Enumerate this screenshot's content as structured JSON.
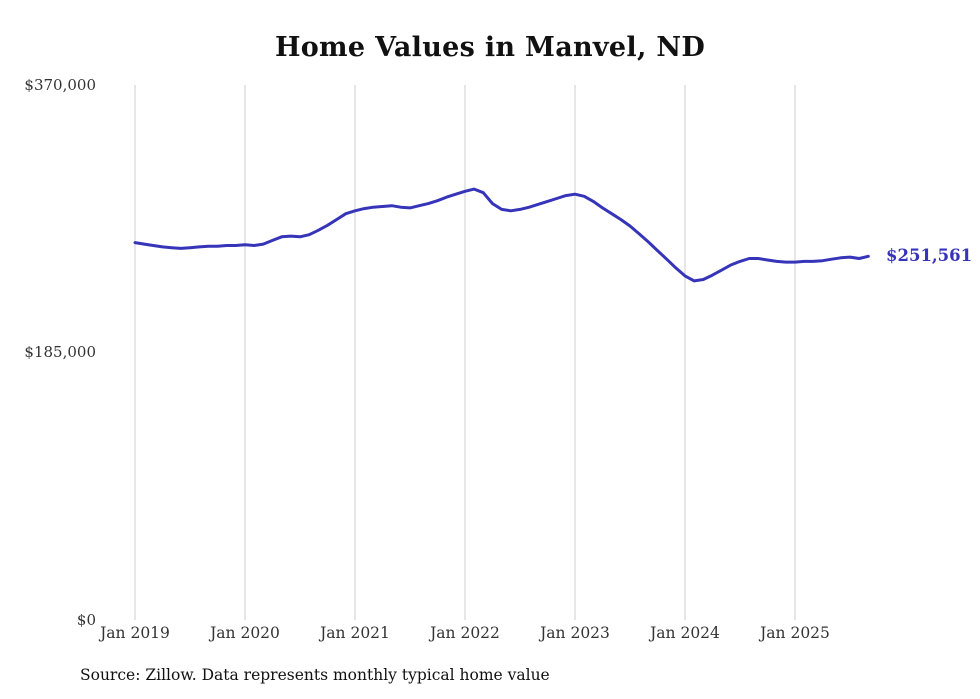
{
  "chart_data": {
    "type": "line",
    "title": "Home Values in Manvel, ND",
    "source": "Source: Zillow. Data represents monthly typical home value",
    "xlabel": "",
    "ylabel": "",
    "ylim": [
      0,
      370000
    ],
    "grid": "vertical-only",
    "legend": "none",
    "line_color": "#3634b8",
    "grid_color": "#cccccc",
    "end_label": "$251,561",
    "end_value": 251561,
    "y_ticks": [
      "$370,000",
      "$185,000",
      "$0"
    ],
    "y_tick_values": [
      370000,
      185000,
      0
    ],
    "x_ticks": [
      "Jan 2019",
      "Jan 2020",
      "Jan 2021",
      "Jan 2022",
      "Jan 2023",
      "Jan 2024",
      "Jan 2025"
    ],
    "series": [
      {
        "name": "Typical home value",
        "start_month": "Jan 2019",
        "end_month": "Sep 2025",
        "frequency": "monthly",
        "values": [
          261000,
          260000,
          259000,
          258000,
          257500,
          257000,
          257500,
          258000,
          258500,
          258500,
          259000,
          259000,
          259500,
          259000,
          260000,
          262500,
          265000,
          265500,
          265000,
          266500,
          269500,
          273000,
          277000,
          281000,
          283000,
          284500,
          285500,
          286000,
          286500,
          285500,
          285000,
          286500,
          288000,
          290000,
          292500,
          294500,
          296500,
          298000,
          295500,
          288000,
          284000,
          283000,
          284000,
          285500,
          287500,
          289500,
          291500,
          293500,
          294500,
          293000,
          289500,
          285000,
          281000,
          277000,
          272500,
          267000,
          261500,
          255500,
          249500,
          243500,
          238000,
          234500,
          235500,
          238500,
          242000,
          245500,
          248000,
          250000,
          250000,
          249000,
          248000,
          247500,
          247500,
          248000,
          248000,
          248500,
          249500,
          250500,
          251000,
          250000,
          251561
        ]
      }
    ]
  }
}
